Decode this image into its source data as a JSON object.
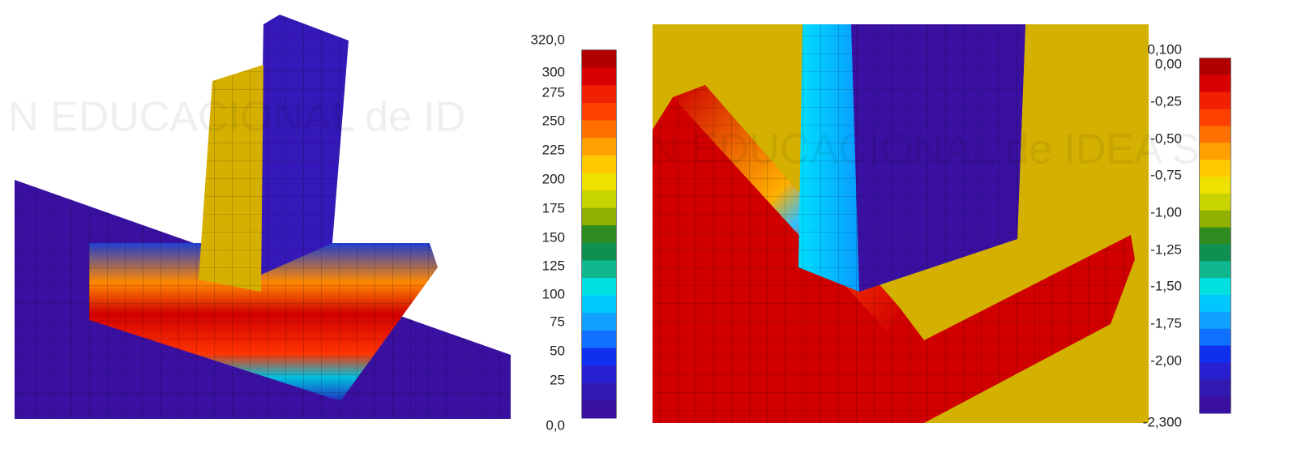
{
  "watermark": {
    "left": "N EDUCACIONAL de ID",
    "right": "N EDUCACIONAL de IDEA S"
  },
  "legend_left": {
    "labels": [
      "320,0",
      "300",
      "275",
      "250",
      "225",
      "200",
      "175",
      "150",
      "125",
      "100",
      "75",
      "50",
      "25",
      "0,0"
    ]
  },
  "legend_right": {
    "labels": [
      "0,100",
      "0,00",
      "-0,25",
      "-0,50",
      "-0,75",
      "-1,00",
      "-1,25",
      "-1,50",
      "-1,75",
      "-2,00",
      "-2,300"
    ]
  }
}
